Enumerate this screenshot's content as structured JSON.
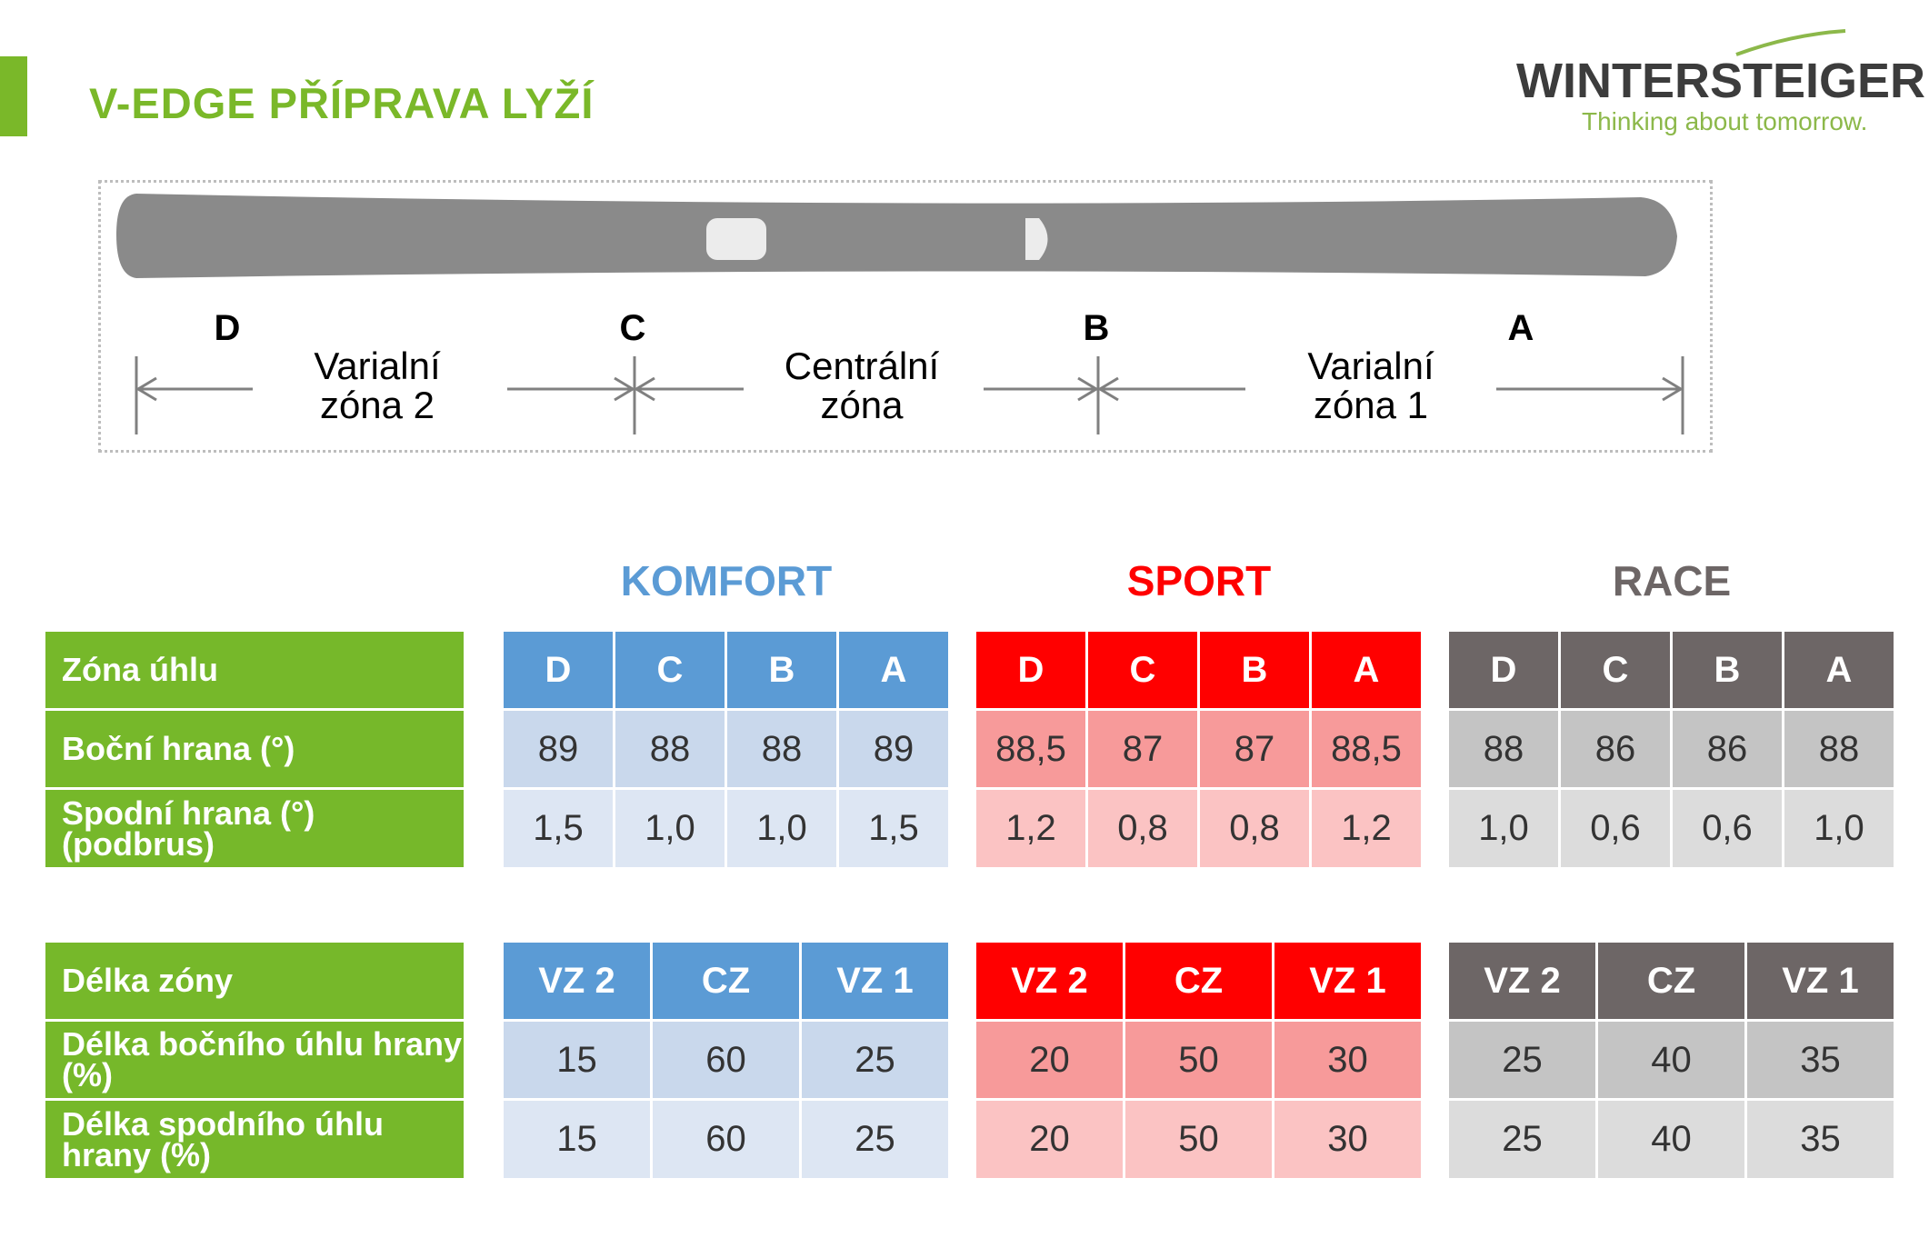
{
  "header": {
    "title": "V-EDGE PŘÍPRAVA LYŽÍ",
    "logo_name": "WINTERSTEIGER",
    "logo_tagline": "Thinking about tomorrow."
  },
  "diagram": {
    "letters": [
      "D",
      "C",
      "B",
      "A"
    ],
    "zones": [
      {
        "line1": "Varialní",
        "line2": "zóna 2"
      },
      {
        "line1": "Centrální",
        "line2": "zóna"
      },
      {
        "line1": "Varialní",
        "line2": "zóna 1"
      }
    ]
  },
  "colors": {
    "green": "#76b82a",
    "komfort": "#5b9bd5",
    "sport": "#ff0000",
    "race": "#6d6666"
  },
  "categories": [
    {
      "name": "KOMFORT",
      "color": "#5b9bd5"
    },
    {
      "name": "SPORT",
      "color": "#ff0000"
    },
    {
      "name": "RACE",
      "color": "#6d6666"
    }
  ],
  "table1": {
    "row_labels": [
      "Zóna úhlu",
      "Boční hrana (°)",
      "Spodní hrana (°) (podbrus)"
    ],
    "columns": [
      "D",
      "C",
      "B",
      "A"
    ],
    "komfort": {
      "bocni": [
        "89",
        "88",
        "88",
        "89"
      ],
      "spodni": [
        "1,5",
        "1,0",
        "1,0",
        "1,5"
      ]
    },
    "sport": {
      "bocni": [
        "88,5",
        "87",
        "87",
        "88,5"
      ],
      "spodni": [
        "1,2",
        "0,8",
        "0,8",
        "1,2"
      ]
    },
    "race": {
      "bocni": [
        "88",
        "86",
        "86",
        "88"
      ],
      "spodni": [
        "1,0",
        "0,6",
        "0,6",
        "1,0"
      ]
    }
  },
  "table2": {
    "row_labels": [
      "Délka zóny",
      "Délka bočního úhlu hrany (%)",
      "Délka spodního úhlu hrany (%)"
    ],
    "columns": [
      "VZ 2",
      "CZ",
      "VZ 1"
    ],
    "komfort": {
      "bocni": [
        "15",
        "60",
        "25"
      ],
      "spodni": [
        "15",
        "60",
        "25"
      ]
    },
    "sport": {
      "bocni": [
        "20",
        "50",
        "30"
      ],
      "spodni": [
        "20",
        "50",
        "30"
      ]
    },
    "race": {
      "bocni": [
        "25",
        "40",
        "35"
      ],
      "spodni": [
        "25",
        "40",
        "35"
      ]
    }
  }
}
